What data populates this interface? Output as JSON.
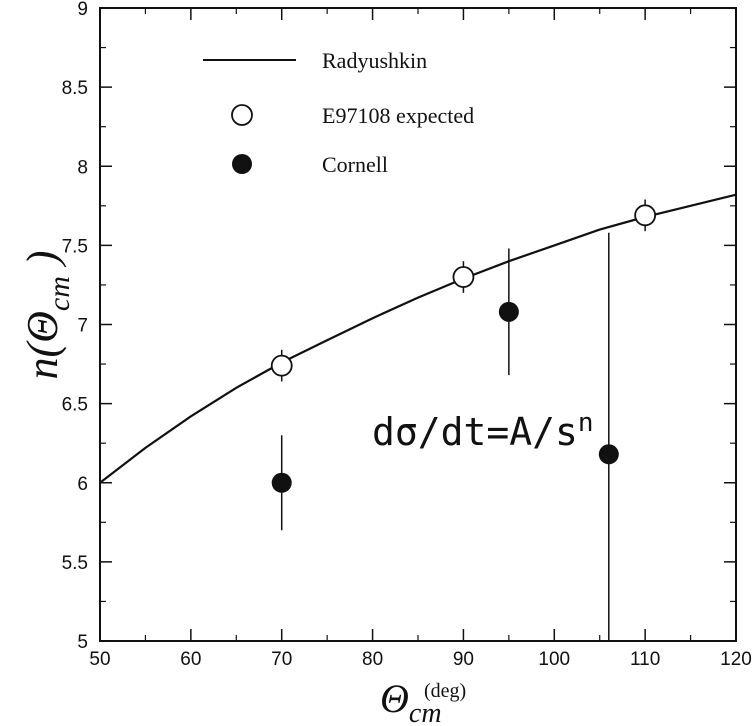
{
  "chart_data": {
    "type": "scatter",
    "x_axis": {
      "min": 50,
      "max": 120,
      "ticks": [
        50,
        60,
        70,
        80,
        90,
        100,
        110,
        120
      ]
    },
    "y_axis": {
      "min": 5,
      "max": 9,
      "ticks": [
        5,
        5.5,
        6,
        6.5,
        7,
        7.5,
        8,
        8.5,
        9
      ],
      "tick_labels": [
        "5",
        "5.5",
        "6",
        "6.5",
        "7",
        "7.5",
        "8",
        "8.5",
        "9"
      ]
    },
    "xlabel": {
      "symbol": "Θ",
      "subscript": "cm",
      "unit": "(deg)"
    },
    "ylabel": {
      "prefix": "n(",
      "symbol": "Θ",
      "subscript": "cm",
      "suffix": " )"
    },
    "annotation": {
      "a": "dσ/dt=A/s",
      "b": "n"
    },
    "series": [
      {
        "name": "Radyushkin",
        "kind": "line",
        "x": [
          50,
          55,
          60,
          65,
          70,
          75,
          80,
          85,
          90,
          95,
          100,
          105,
          110,
          115,
          120
        ],
        "y": [
          6.0,
          6.22,
          6.42,
          6.6,
          6.76,
          6.9,
          7.04,
          7.17,
          7.29,
          7.4,
          7.5,
          7.6,
          7.68,
          7.75,
          7.82
        ]
      },
      {
        "name": "E97108 expected",
        "kind": "open-circle",
        "x": [
          70,
          90,
          110
        ],
        "y": [
          6.74,
          7.3,
          7.69
        ],
        "err": [
          0.1,
          0.1,
          0.1
        ]
      },
      {
        "name": "Cornell",
        "kind": "filled-circle",
        "x": [
          70,
          95,
          106
        ],
        "y": [
          6.0,
          7.08,
          6.18
        ],
        "err_low": [
          0.3,
          0.4,
          1.3
        ],
        "err_high": [
          0.3,
          0.4,
          1.4
        ]
      }
    ],
    "legend": {
      "placement": "top-left"
    }
  }
}
